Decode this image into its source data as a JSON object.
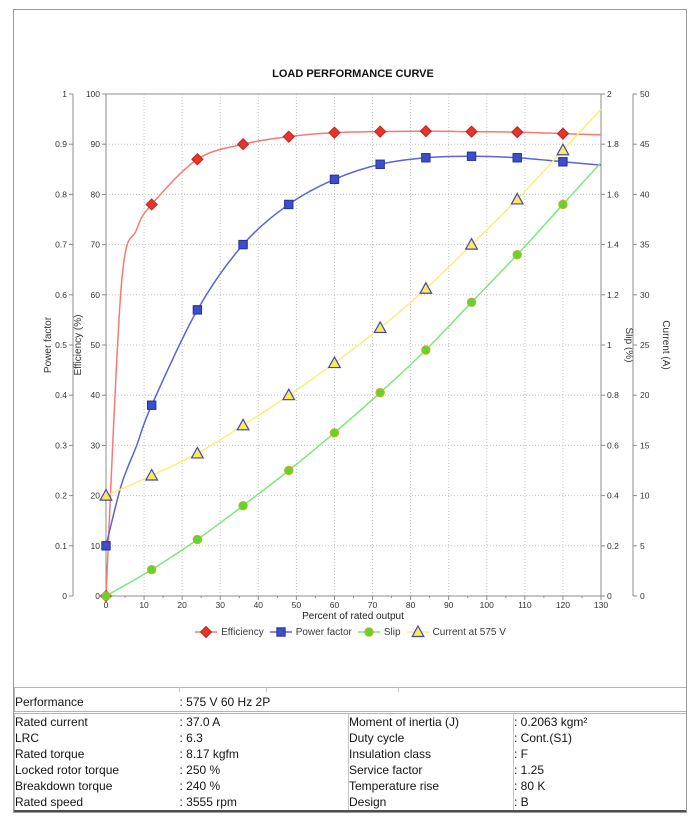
{
  "report": {
    "performance": {
      "label": "Performance",
      "value": ": 575 V 60 Hz 2P"
    },
    "specs": {
      "rows": [
        [
          "Rated current",
          ": 37.0 A",
          "Moment of inertia (J)",
          ": 0.2063 kgm²"
        ],
        [
          "LRC",
          ": 6.3",
          "Duty cycle",
          ": Cont.(S1)"
        ],
        [
          "Rated torque",
          ": 8.17 kgfm",
          "Insulation class",
          ": F"
        ],
        [
          "Locked rotor torque",
          ": 250 %",
          "Service factor",
          ": 1.25"
        ],
        [
          "Breakdown torque",
          ": 240 %",
          "Temperature rise",
          ": 80 K"
        ],
        [
          "Rated speed",
          ": 3555 rpm",
          "Design",
          ": B"
        ]
      ]
    }
  },
  "chart_data": {
    "type": "line",
    "title": "LOAD PERFORMANCE CURVE",
    "xlabel": "Percent of rated output",
    "x_axis": {
      "range": [
        0,
        130
      ],
      "major_tick": 10,
      "minor_tick": 5
    },
    "y_axes": {
      "power_factor": {
        "label": "Power factor",
        "range": [
          0,
          1
        ],
        "tick": 0.1
      },
      "efficiency": {
        "label": "Efficiency (%)",
        "range": [
          0,
          100
        ],
        "tick": 10
      },
      "slip": {
        "label": "Slip (%)",
        "range": [
          0,
          2
        ],
        "tick": 0.2
      },
      "current": {
        "label": "Current (A)",
        "range": [
          0,
          50
        ],
        "tick": 5
      }
    },
    "grid": "dotted",
    "legend_position": "bottom",
    "x": [
      0,
      12,
      24,
      36,
      48,
      60,
      72,
      84,
      96,
      108,
      120
    ],
    "series": [
      {
        "name": "Efficiency",
        "y_axis": "efficiency",
        "marker": "diamond",
        "marker_color": "#e5352b",
        "marker_edge": "#c02420",
        "line_color": "#f57b72",
        "values": [
          0,
          78,
          87,
          90,
          91.5,
          92.3,
          92.5,
          92.6,
          92.5,
          92.4,
          92.1
        ]
      },
      {
        "name": "Power factor",
        "y_axis": "power_factor",
        "marker": "square",
        "marker_color": "#3d4ec9",
        "marker_edge": "#27309e",
        "line_color": "#5b63da",
        "values": [
          0.1,
          0.38,
          0.57,
          0.7,
          0.78,
          0.83,
          0.86,
          0.873,
          0.876,
          0.873,
          0.865
        ]
      },
      {
        "name": "Slip",
        "y_axis": "slip",
        "marker": "circle",
        "marker_color": "#5ad832",
        "marker_edge": "#d9a520",
        "line_color": "#7ce87c",
        "values": [
          0,
          0.105,
          0.225,
          0.36,
          0.5,
          0.65,
          0.81,
          0.98,
          1.17,
          1.36,
          1.56
        ]
      },
      {
        "name": "Current at 575 V",
        "y_axis": "current",
        "marker": "triangle",
        "marker_color": "#fbee4a",
        "marker_edge": "#4343c8",
        "line_color": "#f9ef7a",
        "values": [
          10,
          12,
          14.2,
          17,
          20,
          23.2,
          26.7,
          30.6,
          35,
          39.5,
          44.4
        ]
      }
    ]
  }
}
